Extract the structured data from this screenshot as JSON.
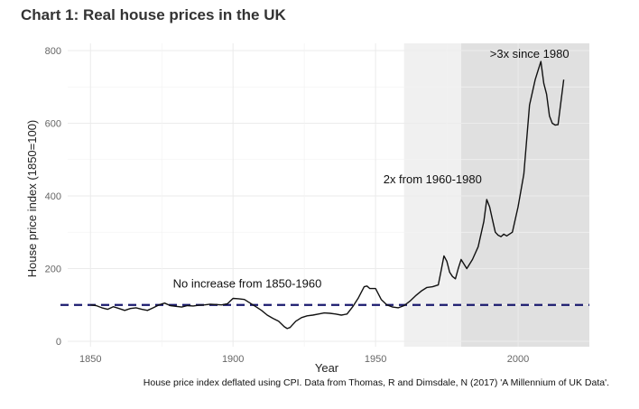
{
  "title": "Chart 1: Real house prices in the UK",
  "source_note": "House price index deflated using CPI. Data from Thomas, R and Dimsdale, N (2017) 'A Millennium of UK Data'.",
  "chart_data": {
    "type": "line",
    "title": "Chart 1: Real house prices in the UK",
    "xlabel": "Year",
    "ylabel": "House price index (1850=100)",
    "xlim": [
      1842,
      2025
    ],
    "ylim": [
      -15,
      820
    ],
    "x_ticks": [
      1850,
      1900,
      1950,
      2000
    ],
    "y_ticks": [
      0,
      200,
      400,
      600,
      800
    ],
    "grid": true,
    "legend": "none",
    "reference_line": {
      "y": 100,
      "style": "dashed",
      "color": "#1a1a6e"
    },
    "shaded_regions": [
      {
        "x0": 1960,
        "x1": 1980,
        "color": "#f0f0f0"
      },
      {
        "x0": 1980,
        "x1": 2025,
        "color": "#e0e0e0"
      }
    ],
    "annotations": [
      {
        "text": "No increase from 1850-1960",
        "x": 1905,
        "y": 148
      },
      {
        "text": "2x from 1960-1980",
        "x": 1970,
        "y": 435
      },
      {
        "text": ">3x since 1980",
        "x": 2004,
        "y": 780
      }
    ],
    "series": [
      {
        "color": "#111111",
        "x": [
          1850,
          1852,
          1854,
          1856,
          1858,
          1860,
          1862,
          1864,
          1866,
          1868,
          1870,
          1872,
          1874,
          1876,
          1878,
          1880,
          1882,
          1884,
          1886,
          1888,
          1890,
          1892,
          1894,
          1896,
          1898,
          1900,
          1902,
          1904,
          1906,
          1908,
          1910,
          1912,
          1914,
          1916,
          1918,
          1919,
          1920,
          1922,
          1924,
          1926,
          1928,
          1930,
          1932,
          1934,
          1936,
          1938,
          1940,
          1942,
          1944,
          1946,
          1947,
          1948,
          1950,
          1952,
          1954,
          1956,
          1958,
          1960,
          1962,
          1964,
          1966,
          1968,
          1970,
          1972,
          1973,
          1974,
          1975,
          1976,
          1977,
          1978,
          1979,
          1980,
          1982,
          1984,
          1986,
          1988,
          1989,
          1990,
          1991,
          1992,
          1993,
          1994,
          1995,
          1996,
          1998,
          2000,
          2002,
          2004,
          2006,
          2007,
          2008,
          2009,
          2010,
          2011,
          2012,
          2013,
          2014,
          2016
        ],
        "values": [
          100,
          98,
          92,
          88,
          95,
          90,
          85,
          90,
          92,
          88,
          85,
          92,
          100,
          105,
          98,
          96,
          94,
          98,
          97,
          99,
          100,
          102,
          101,
          100,
          103,
          118,
          117,
          115,
          105,
          95,
          85,
          72,
          63,
          55,
          40,
          35,
          38,
          55,
          65,
          70,
          72,
          75,
          78,
          77,
          75,
          72,
          75,
          95,
          120,
          150,
          152,
          145,
          145,
          115,
          100,
          94,
          92,
          98,
          110,
          125,
          138,
          148,
          150,
          155,
          195,
          235,
          220,
          190,
          178,
          172,
          200,
          225,
          200,
          225,
          260,
          330,
          390,
          370,
          335,
          300,
          292,
          288,
          295,
          290,
          300,
          370,
          460,
          650,
          720,
          745,
          770,
          710,
          680,
          620,
          600,
          595,
          596,
          720
        ]
      }
    ]
  }
}
